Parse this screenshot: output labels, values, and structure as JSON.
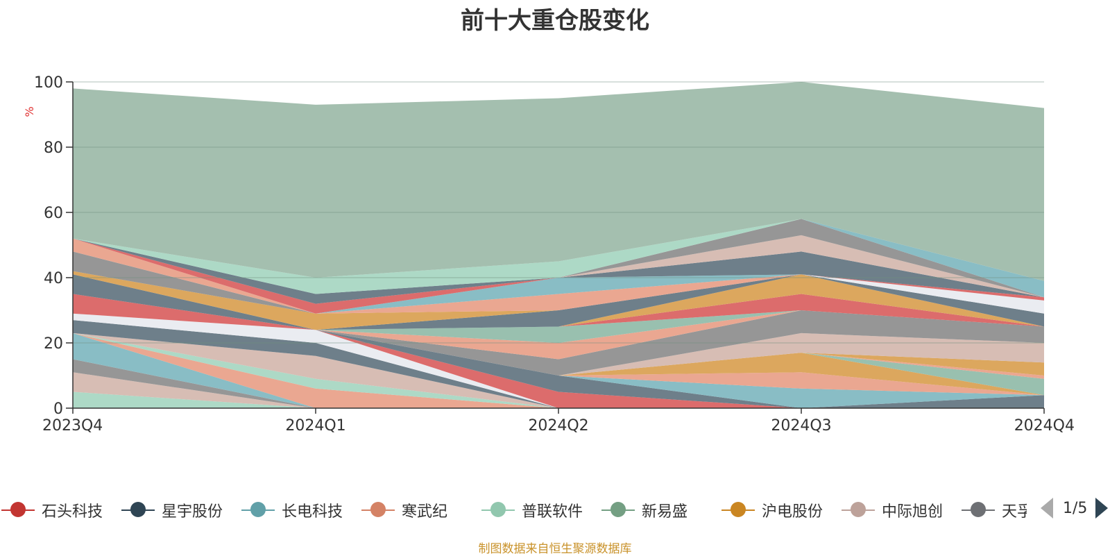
{
  "chart_data": {
    "type": "area",
    "title": "前十大重仓股变化",
    "ylabel": "%",
    "ylim": [
      0,
      100
    ],
    "yticks": [
      0,
      20,
      40,
      60,
      80,
      100
    ],
    "categories": [
      "2023Q4",
      "2024Q1",
      "2024Q2",
      "2024Q3",
      "2024Q4"
    ],
    "grid": true,
    "stacked": true,
    "series": [
      {
        "color": "#a6d6c1",
        "values": [
          5,
          0,
          0,
          0,
          0
        ]
      },
      {
        "color": "#d4b7ae",
        "values": [
          6,
          0,
          0,
          0,
          0
        ]
      },
      {
        "color": "#8d8d8d",
        "values": [
          4,
          0,
          0,
          0,
          0
        ]
      },
      {
        "color": "#7fb7c0",
        "values": [
          8,
          0,
          0,
          0,
          0
        ]
      },
      {
        "color": "#e8a088",
        "values": [
          0,
          6,
          0,
          0,
          0
        ]
      },
      {
        "color": "#a6d6c1",
        "values": [
          0,
          3,
          0,
          0,
          0
        ]
      },
      {
        "color": "#d4b7ae",
        "values": [
          0,
          7,
          0,
          0,
          0
        ]
      },
      {
        "color": "#627480",
        "values": [
          4,
          4,
          0,
          0,
          0
        ]
      },
      {
        "color": "#e8eaf0",
        "values": [
          2,
          4,
          0,
          0,
          0
        ]
      },
      {
        "color": "#d96060",
        "values": [
          6,
          0,
          5,
          0,
          0
        ]
      },
      {
        "color": "#627480",
        "values": [
          6,
          0,
          5,
          0,
          4
        ]
      },
      {
        "color": "#7fb7c0",
        "values": [
          0,
          0,
          0,
          6,
          0
        ]
      },
      {
        "color": "#e8a088",
        "values": [
          0,
          0,
          0,
          5,
          0
        ]
      },
      {
        "color": "#d9a050",
        "values": [
          0,
          0,
          0,
          6,
          0
        ]
      },
      {
        "color": "#90bba8",
        "values": [
          0,
          0,
          0,
          0,
          5
        ]
      },
      {
        "color": "#e8a088",
        "values": [
          0,
          0,
          0,
          0,
          1
        ]
      },
      {
        "color": "#d9a050",
        "values": [
          0,
          0,
          0,
          0,
          4
        ]
      },
      {
        "color": "#d4b7ae",
        "values": [
          0,
          0,
          0,
          6,
          6
        ]
      },
      {
        "color": "#8d8d8d",
        "values": [
          0,
          0,
          5,
          7,
          5
        ]
      },
      {
        "color": "#e8a088",
        "values": [
          0,
          0,
          5,
          0,
          0
        ]
      },
      {
        "color": "#90bba8",
        "values": [
          0,
          0,
          5,
          0,
          0
        ]
      },
      {
        "color": "#d9a050",
        "values": [
          0,
          0,
          0,
          0,
          0
        ]
      },
      {
        "color": "#d96060",
        "values": [
          0,
          0,
          0,
          5,
          0
        ]
      },
      {
        "color": "#d9a050",
        "values": [
          0,
          0,
          0,
          6,
          0
        ]
      },
      {
        "color": "#627480",
        "values": [
          0,
          0,
          5,
          0,
          4
        ]
      },
      {
        "color": "#d9a050",
        "values": [
          1,
          5,
          0,
          0,
          0
        ]
      },
      {
        "color": "#e8a088",
        "values": [
          0,
          0,
          5,
          0,
          0
        ]
      },
      {
        "color": "#7fb7c0",
        "values": [
          0,
          0,
          5,
          0,
          0
        ]
      },
      {
        "color": "#e8eaf0",
        "values": [
          0,
          0,
          0,
          0,
          4
        ]
      },
      {
        "color": "#d96060",
        "values": [
          0,
          0,
          0,
          0,
          1
        ]
      },
      {
        "color": "#627480",
        "values": [
          0,
          0,
          0,
          7,
          0
        ]
      },
      {
        "color": "#d4b7ae",
        "values": [
          0,
          0,
          0,
          5,
          0
        ]
      },
      {
        "color": "#8d8d8d",
        "values": [
          6,
          0,
          0,
          5,
          0
        ]
      },
      {
        "color": "#e8a088",
        "values": [
          4,
          0,
          0,
          0,
          0
        ]
      },
      {
        "color": "#d96060",
        "values": [
          0,
          3,
          0,
          0,
          0
        ]
      },
      {
        "color": "#627480",
        "values": [
          0,
          3,
          0,
          0,
          0
        ]
      },
      {
        "color": "#a6d6c1",
        "values": [
          0,
          5,
          0,
          0,
          0
        ]
      },
      {
        "color": "#a6d6c1",
        "values": [
          0,
          0,
          5,
          0,
          0
        ]
      },
      {
        "color": "#7fb7c0",
        "values": [
          0,
          0,
          0,
          0,
          5
        ]
      },
      {
        "color": "#9cbaa8",
        "values": [
          46,
          53,
          50,
          42,
          53
        ]
      }
    ]
  },
  "legend": {
    "items": [
      {
        "label": "石头科技",
        "color": "#c23531"
      },
      {
        "label": "星宇股份",
        "color": "#2f4554"
      },
      {
        "label": "长电科技",
        "color": "#61a0a8"
      },
      {
        "label": "寒武纪",
        "color": "#d48265"
      },
      {
        "label": "普联软件",
        "color": "#91c7ae"
      },
      {
        "label": "新易盛",
        "color": "#749f83"
      },
      {
        "label": "沪电股份",
        "color": "#ca8622"
      },
      {
        "label": "中际旭创",
        "color": "#bda29a"
      },
      {
        "label": "天孚通信",
        "color": "#6e7074"
      }
    ],
    "page": "1/5"
  },
  "footnote": "制图数据来自恒生聚源数据库"
}
